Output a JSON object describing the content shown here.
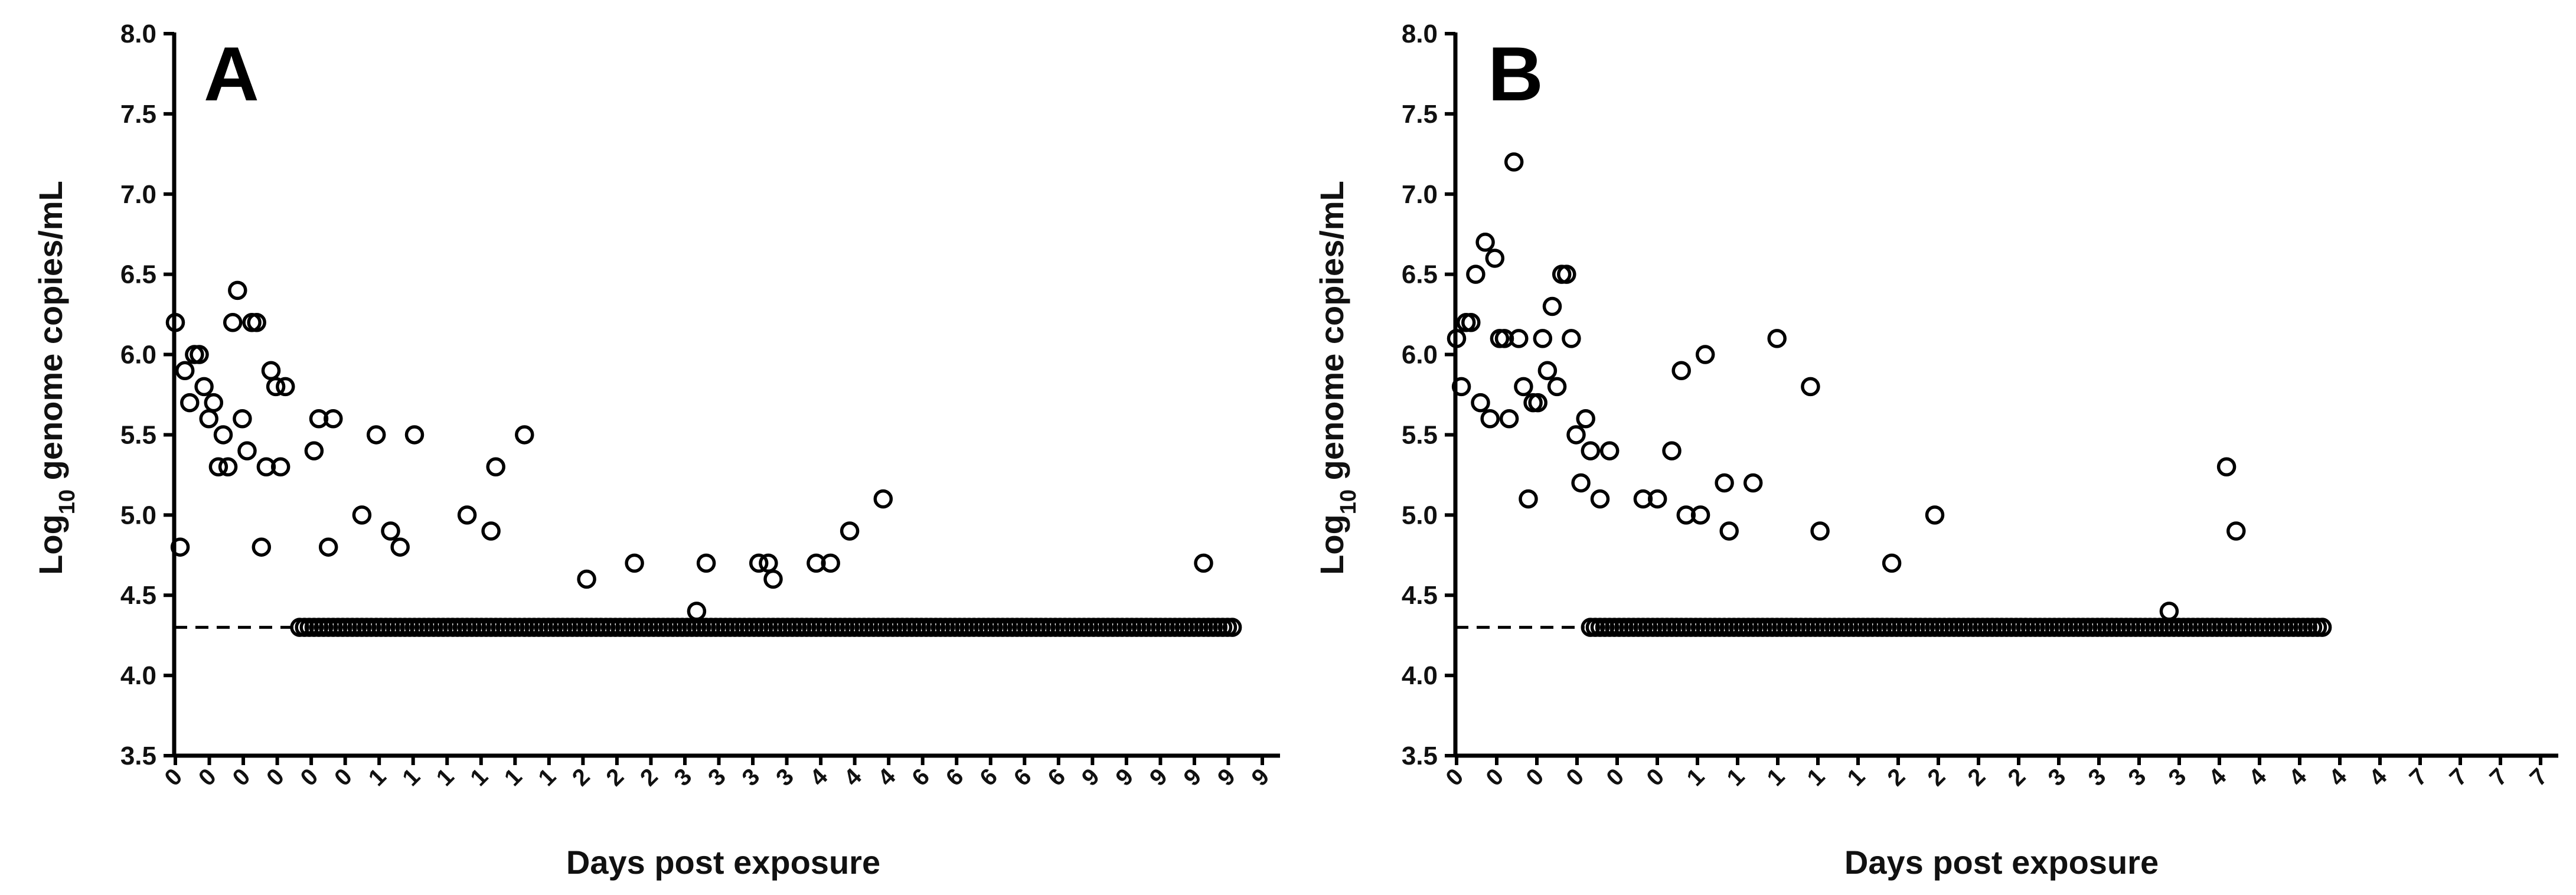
{
  "chart_data": [
    {
      "type": "scatter",
      "panel_label": "A",
      "xlabel": "Days post exposure",
      "ylabel_base": "Log",
      "ylabel_subscript": "10",
      "ylabel_rest": " genome copies/mL",
      "ylim": [
        3.5,
        8.0
      ],
      "yticks": [
        "3.5",
        "4.0",
        "4.5",
        "5.0",
        "5.5",
        "6.0",
        "6.5",
        "7.0",
        "7.5",
        "8.0"
      ],
      "limit_of_detection": 4.3,
      "xticks": [
        "0",
        "0",
        "0",
        "0",
        "0",
        "0",
        "1",
        "1",
        "1",
        "1",
        "1",
        "1",
        "2",
        "2",
        "2",
        "3",
        "3",
        "3",
        "3",
        "4",
        "4",
        "4",
        "6",
        "6",
        "6",
        "6",
        "6",
        "9",
        "9",
        "9",
        "9",
        "9",
        "9"
      ],
      "x_category_count": 118,
      "detected": [
        {
          "x": 0,
          "y": 6.2
        },
        {
          "x": 1,
          "y": 4.8
        },
        {
          "x": 2,
          "y": 5.9
        },
        {
          "x": 3,
          "y": 5.7
        },
        {
          "x": 4,
          "y": 6.0
        },
        {
          "x": 5,
          "y": 6.0
        },
        {
          "x": 6,
          "y": 5.8
        },
        {
          "x": 7,
          "y": 5.6
        },
        {
          "x": 8,
          "y": 5.7
        },
        {
          "x": 9,
          "y": 5.3
        },
        {
          "x": 10,
          "y": 5.5
        },
        {
          "x": 11,
          "y": 5.3
        },
        {
          "x": 12,
          "y": 6.2
        },
        {
          "x": 13,
          "y": 6.4
        },
        {
          "x": 14,
          "y": 5.6
        },
        {
          "x": 15,
          "y": 5.4
        },
        {
          "x": 16,
          "y": 6.2
        },
        {
          "x": 17,
          "y": 6.2
        },
        {
          "x": 18,
          "y": 4.8
        },
        {
          "x": 19,
          "y": 5.3
        },
        {
          "x": 20,
          "y": 5.9
        },
        {
          "x": 21,
          "y": 5.8
        },
        {
          "x": 22,
          "y": 5.3
        },
        {
          "x": 23,
          "y": 5.8
        },
        {
          "x": 29,
          "y": 5.4
        },
        {
          "x": 30,
          "y": 5.6
        },
        {
          "x": 32,
          "y": 4.8
        },
        {
          "x": 33,
          "y": 5.6
        },
        {
          "x": 39,
          "y": 5.0
        },
        {
          "x": 42,
          "y": 5.5
        },
        {
          "x": 45,
          "y": 4.9
        },
        {
          "x": 47,
          "y": 4.8
        },
        {
          "x": 50,
          "y": 5.5
        },
        {
          "x": 61,
          "y": 5.0
        },
        {
          "x": 66,
          "y": 4.9
        },
        {
          "x": 67,
          "y": 5.3
        },
        {
          "x": 73,
          "y": 5.5
        },
        {
          "x": 86,
          "y": 4.6
        },
        {
          "x": 96,
          "y": 4.7
        },
        {
          "x": 109,
          "y": 4.4
        },
        {
          "x": 111,
          "y": 4.7
        },
        {
          "x": 122,
          "y": 4.7
        },
        {
          "x": 124,
          "y": 4.7
        },
        {
          "x": 125,
          "y": 4.6
        },
        {
          "x": 134,
          "y": 4.7
        },
        {
          "x": 137,
          "y": 4.7
        },
        {
          "x": 141,
          "y": 4.9
        },
        {
          "x": 148,
          "y": 5.1
        },
        {
          "x": 215,
          "y": 4.7
        }
      ],
      "undetected_value": 4.3,
      "undetected_x_start": 26,
      "undetected_x_end": 221
    },
    {
      "type": "scatter",
      "panel_label": "B",
      "xlabel": "Days post exposure",
      "ylabel_base": "Log",
      "ylabel_subscript": "10",
      "ylabel_rest": " genome copies/mL",
      "ylim": [
        3.5,
        8.0
      ],
      "yticks": [
        "3.5",
        "4.0",
        "4.5",
        "5.0",
        "5.5",
        "6.0",
        "6.5",
        "7.0",
        "7.5",
        "8.0"
      ],
      "limit_of_detection": 4.3,
      "xticks": [
        "0",
        "0",
        "0",
        "0",
        "0",
        "0",
        "1",
        "1",
        "1",
        "1",
        "1",
        "2",
        "2",
        "2",
        "2",
        "3",
        "3",
        "3",
        "3",
        "4",
        "4",
        "4",
        "4",
        "4",
        "7",
        "7",
        "7",
        "7"
      ],
      "x_category_count": 100,
      "detected": [
        {
          "x": 0,
          "y": 6.1
        },
        {
          "x": 1,
          "y": 5.8
        },
        {
          "x": 2,
          "y": 6.2
        },
        {
          "x": 3,
          "y": 6.2
        },
        {
          "x": 4,
          "y": 6.5
        },
        {
          "x": 5,
          "y": 5.7
        },
        {
          "x": 6,
          "y": 6.7
        },
        {
          "x": 7,
          "y": 5.6
        },
        {
          "x": 8,
          "y": 6.6
        },
        {
          "x": 9,
          "y": 6.1
        },
        {
          "x": 10,
          "y": 6.1
        },
        {
          "x": 11,
          "y": 5.6
        },
        {
          "x": 12,
          "y": 7.2
        },
        {
          "x": 13,
          "y": 6.1
        },
        {
          "x": 14,
          "y": 5.8
        },
        {
          "x": 15,
          "y": 5.1
        },
        {
          "x": 16,
          "y": 5.7
        },
        {
          "x": 17,
          "y": 5.7
        },
        {
          "x": 18,
          "y": 6.1
        },
        {
          "x": 19,
          "y": 5.9
        },
        {
          "x": 20,
          "y": 6.3
        },
        {
          "x": 21,
          "y": 5.8
        },
        {
          "x": 22,
          "y": 6.5
        },
        {
          "x": 23,
          "y": 6.5
        },
        {
          "x": 24,
          "y": 6.1
        },
        {
          "x": 25,
          "y": 5.5
        },
        {
          "x": 26,
          "y": 5.2
        },
        {
          "x": 27,
          "y": 5.6
        },
        {
          "x": 28,
          "y": 5.4
        },
        {
          "x": 30,
          "y": 5.1
        },
        {
          "x": 32,
          "y": 5.4
        },
        {
          "x": 39,
          "y": 5.1
        },
        {
          "x": 42,
          "y": 5.1
        },
        {
          "x": 45,
          "y": 5.4
        },
        {
          "x": 47,
          "y": 5.9
        },
        {
          "x": 48,
          "y": 5.0
        },
        {
          "x": 51,
          "y": 5.0
        },
        {
          "x": 52,
          "y": 6.0
        },
        {
          "x": 56,
          "y": 5.2
        },
        {
          "x": 57,
          "y": 4.9
        },
        {
          "x": 62,
          "y": 5.2
        },
        {
          "x": 67,
          "y": 6.1
        },
        {
          "x": 74,
          "y": 5.8
        },
        {
          "x": 76,
          "y": 4.9
        },
        {
          "x": 91,
          "y": 4.7
        },
        {
          "x": 100,
          "y": 5.0
        },
        {
          "x": 149,
          "y": 4.4
        },
        {
          "x": 161,
          "y": 5.3
        },
        {
          "x": 163,
          "y": 4.9
        }
      ],
      "undetected_value": 4.3,
      "undetected_x_start": 28,
      "undetected_x_end": 181
    }
  ]
}
